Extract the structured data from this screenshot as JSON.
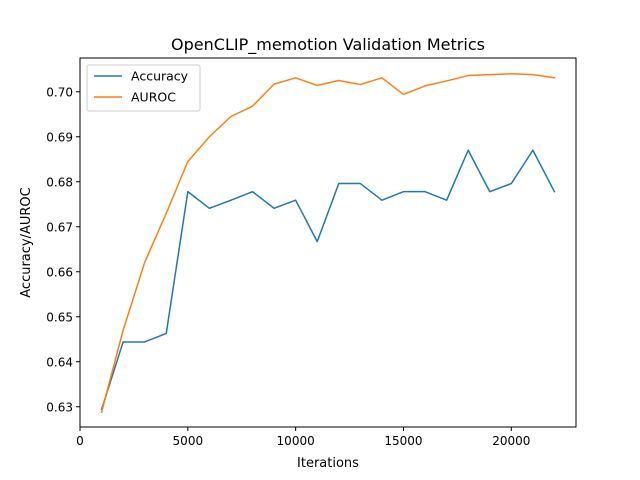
{
  "chart_data": {
    "type": "line",
    "title": "OpenCLIP_memotion Validation Metrics",
    "xlabel": "Iterations",
    "ylabel": "Accuracy/AUROC",
    "xlim": [
      0,
      23000
    ],
    "ylim": [
      0.6255,
      0.7075
    ],
    "xticks": [
      0,
      5000,
      10000,
      15000,
      20000
    ],
    "xtick_labels": [
      "0",
      "5000",
      "10000",
      "15000",
      "20000"
    ],
    "yticks": [
      0.63,
      0.64,
      0.65,
      0.66,
      0.67,
      0.68,
      0.69,
      0.7
    ],
    "ytick_labels": [
      "0.63",
      "0.64",
      "0.65",
      "0.66",
      "0.67",
      "0.68",
      "0.69",
      "0.70"
    ],
    "grid": false,
    "legend_position": "top-left",
    "x": [
      1000,
      2000,
      3000,
      4000,
      5000,
      6000,
      7000,
      8000,
      9000,
      10000,
      11000,
      12000,
      13000,
      14000,
      15000,
      16000,
      17000,
      18000,
      19000,
      20000,
      21000,
      22000
    ],
    "series": [
      {
        "name": "Accuracy",
        "color": "#1f77b4",
        "values": [
          0.6294,
          0.6444,
          0.6444,
          0.6463,
          0.6778,
          0.6741,
          0.6759,
          0.6778,
          0.6741,
          0.6759,
          0.6667,
          0.6796,
          0.6796,
          0.6759,
          0.6778,
          0.6778,
          0.6759,
          0.687,
          0.6778,
          0.6796,
          0.687,
          0.6778
        ]
      },
      {
        "name": "AUROC",
        "color": "#ff7f0e",
        "values": [
          0.6288,
          0.647,
          0.6621,
          0.673,
          0.6845,
          0.69,
          0.6945,
          0.6968,
          0.7017,
          0.7031,
          0.7014,
          0.7025,
          0.7016,
          0.7031,
          0.6994,
          0.7013,
          0.7024,
          0.7036,
          0.7038,
          0.704,
          0.7038,
          0.7031
        ]
      }
    ]
  }
}
